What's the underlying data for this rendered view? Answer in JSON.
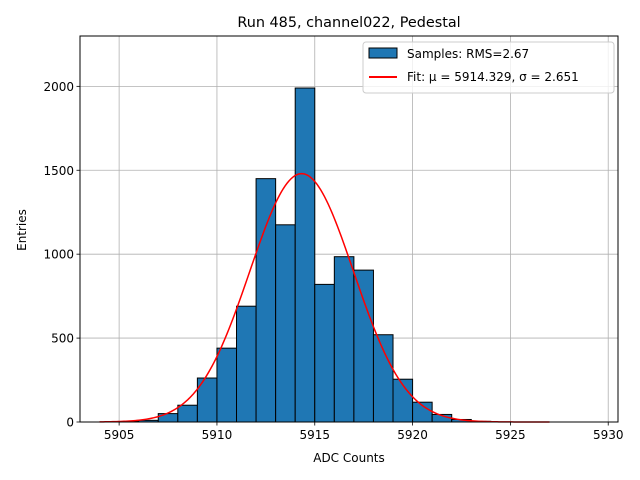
{
  "chart_data": {
    "type": "bar",
    "title": "Run 485, channel022, Pedestal",
    "xlabel": "ADC Counts",
    "ylabel": "Entries",
    "xlim": [
      5903,
      5930.5
    ],
    "ylim": [
      0,
      2300
    ],
    "xticks": [
      5905,
      5910,
      5915,
      5920,
      5925,
      5930
    ],
    "yticks": [
      0,
      500,
      1000,
      1500,
      2000
    ],
    "grid": true,
    "legend_position": "top-right",
    "bins": [
      {
        "left": 5905,
        "right": 5906,
        "count": 3
      },
      {
        "left": 5906,
        "right": 5907,
        "count": 10
      },
      {
        "left": 5907,
        "right": 5908,
        "count": 50
      },
      {
        "left": 5908,
        "right": 5909,
        "count": 100
      },
      {
        "left": 5909,
        "right": 5910,
        "count": 262
      },
      {
        "left": 5910,
        "right": 5911,
        "count": 440
      },
      {
        "left": 5911,
        "right": 5912,
        "count": 690
      },
      {
        "left": 5912,
        "right": 5913,
        "count": 1450
      },
      {
        "left": 5913,
        "right": 5914,
        "count": 1175
      },
      {
        "left": 5914,
        "right": 5915,
        "count": 1990
      },
      {
        "left": 5915,
        "right": 5916,
        "count": 820
      },
      {
        "left": 5916,
        "right": 5917,
        "count": 985
      },
      {
        "left": 5917,
        "right": 5918,
        "count": 905
      },
      {
        "left": 5918,
        "right": 5919,
        "count": 520
      },
      {
        "left": 5919,
        "right": 5920,
        "count": 255
      },
      {
        "left": 5920,
        "right": 5921,
        "count": 118
      },
      {
        "left": 5921,
        "right": 5922,
        "count": 45
      },
      {
        "left": 5922,
        "right": 5923,
        "count": 15
      },
      {
        "left": 5923,
        "right": 5924,
        "count": 4
      }
    ],
    "fit": {
      "type": "gaussian",
      "mu": 5914.329,
      "sigma": 2.651,
      "amplitude": 1480,
      "x_range": [
        5904,
        5927
      ]
    },
    "series": [
      {
        "name": "Samples: RMS=2.67",
        "kind": "histogram",
        "color": "#1f77b4",
        "edge_color": "#000000"
      },
      {
        "name": "Fit: μ = 5914.329, σ = 2.651",
        "kind": "line",
        "color": "#ff0000"
      }
    ]
  }
}
